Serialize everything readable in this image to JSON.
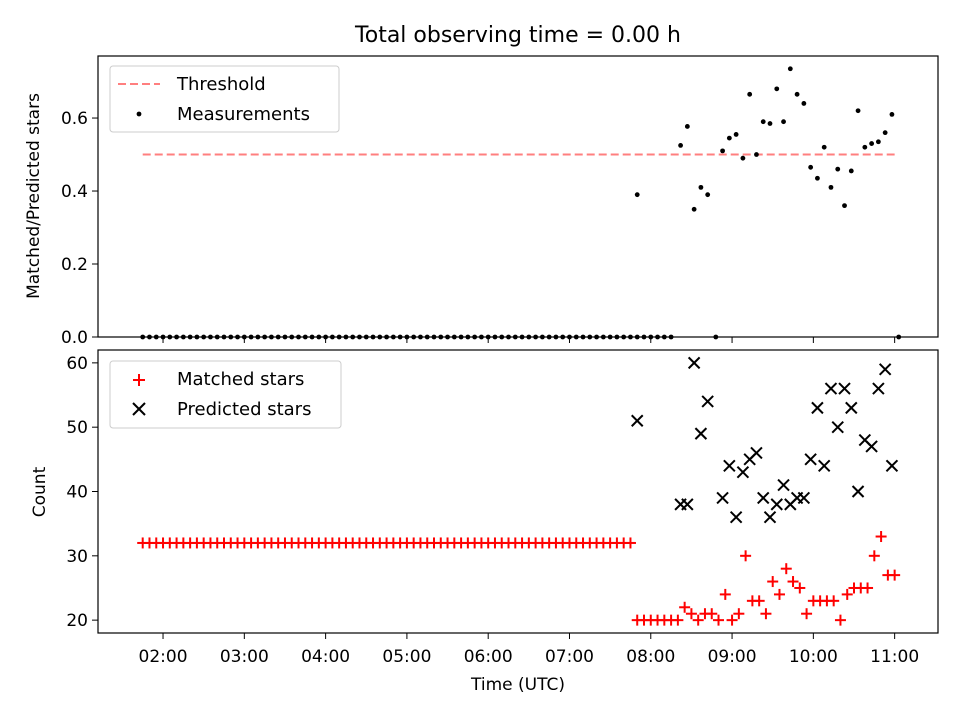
{
  "figure": {
    "title": "Total observing time = 0.00 h",
    "xlabel": "Time (UTC)"
  },
  "colors": {
    "threshold": "#ff7f7f",
    "measurement": "#000000",
    "matched": "#ff0000",
    "predicted": "#000000"
  },
  "chart_data": [
    {
      "type": "scatter",
      "ylabel": "Matched/Predicted stars",
      "ylim": [
        0,
        0.77
      ],
      "yticks": [
        "0.0",
        "0.2",
        "0.4",
        "0.6"
      ],
      "xlim": [
        "01:12",
        "11:32"
      ],
      "legend": {
        "position": "upper-left",
        "entries": [
          "Threshold",
          "Measurements"
        ]
      },
      "threshold": {
        "name": "Threshold",
        "value": 0.5,
        "x": [
          "01:45",
          "11:00"
        ]
      },
      "measurements": {
        "name": "Measurements",
        "zero_times": [
          "01:45",
          "01:50",
          "01:55",
          "02:00",
          "02:05",
          "02:10",
          "02:15",
          "02:20",
          "02:25",
          "02:30",
          "02:35",
          "02:40",
          "02:45",
          "02:50",
          "02:55",
          "03:00",
          "03:05",
          "03:10",
          "03:15",
          "03:20",
          "03:25",
          "03:30",
          "03:35",
          "03:40",
          "03:45",
          "03:50",
          "03:55",
          "04:00",
          "04:05",
          "04:10",
          "04:15",
          "04:20",
          "04:25",
          "04:30",
          "04:35",
          "04:40",
          "04:45",
          "04:50",
          "04:55",
          "05:00",
          "05:05",
          "05:10",
          "05:15",
          "05:20",
          "05:25",
          "05:30",
          "05:35",
          "05:40",
          "05:45",
          "05:50",
          "05:55",
          "06:00",
          "06:05",
          "06:10",
          "06:15",
          "06:20",
          "06:25",
          "06:30",
          "06:35",
          "06:40",
          "06:45",
          "06:50",
          "06:55",
          "07:00",
          "07:05",
          "07:10",
          "07:15",
          "07:20",
          "07:25",
          "07:30",
          "07:35",
          "07:40",
          "07:45",
          "07:50",
          "07:55",
          "08:00",
          "08:05",
          "08:10",
          "08:15",
          "08:48",
          "11:03"
        ],
        "points": [
          [
            "07:50",
            0.39
          ],
          [
            "08:22",
            0.525
          ],
          [
            "08:27",
            0.577
          ],
          [
            "08:32",
            0.35
          ],
          [
            "08:37",
            0.41
          ],
          [
            "08:42",
            0.39
          ],
          [
            "08:53",
            0.51
          ],
          [
            "08:58",
            0.545
          ],
          [
            "09:03",
            0.555
          ],
          [
            "09:08",
            0.49
          ],
          [
            "09:13",
            0.665
          ],
          [
            "09:18",
            0.5
          ],
          [
            "09:23",
            0.59
          ],
          [
            "09:28",
            0.585
          ],
          [
            "09:33",
            0.68
          ],
          [
            "09:38",
            0.59
          ],
          [
            "09:43",
            0.735
          ],
          [
            "09:48",
            0.665
          ],
          [
            "09:53",
            0.64
          ],
          [
            "09:58",
            0.465
          ],
          [
            "10:03",
            0.435
          ],
          [
            "10:08",
            0.52
          ],
          [
            "10:13",
            0.41
          ],
          [
            "10:18",
            0.46
          ],
          [
            "10:23",
            0.36
          ],
          [
            "10:28",
            0.455
          ],
          [
            "10:33",
            0.62
          ],
          [
            "10:38",
            0.52
          ],
          [
            "10:43",
            0.53
          ],
          [
            "10:48",
            0.535
          ],
          [
            "10:53",
            0.56
          ],
          [
            "10:58",
            0.61
          ]
        ]
      }
    },
    {
      "type": "scatter",
      "ylabel": "Count",
      "ylim": [
        18,
        62
      ],
      "yticks": [
        "20",
        "30",
        "40",
        "50",
        "60"
      ],
      "xlim": [
        "01:12",
        "11:32"
      ],
      "xticks": [
        "02:00",
        "03:00",
        "04:00",
        "05:00",
        "06:00",
        "07:00",
        "08:00",
        "09:00",
        "10:00",
        "11:00"
      ],
      "legend": {
        "position": "upper-left",
        "entries": [
          "Matched stars",
          "Predicted stars"
        ]
      },
      "matched": {
        "name": "Matched stars",
        "constant_value": 32,
        "constant_times": [
          "01:45",
          "01:50",
          "01:55",
          "02:00",
          "02:05",
          "02:10",
          "02:15",
          "02:20",
          "02:25",
          "02:30",
          "02:35",
          "02:40",
          "02:45",
          "02:50",
          "02:55",
          "03:00",
          "03:05",
          "03:10",
          "03:15",
          "03:20",
          "03:25",
          "03:30",
          "03:35",
          "03:40",
          "03:45",
          "03:50",
          "03:55",
          "04:00",
          "04:05",
          "04:10",
          "04:15",
          "04:20",
          "04:25",
          "04:30",
          "04:35",
          "04:40",
          "04:45",
          "04:50",
          "04:55",
          "05:00",
          "05:05",
          "05:10",
          "05:15",
          "05:20",
          "05:25",
          "05:30",
          "05:35",
          "05:40",
          "05:45",
          "05:50",
          "05:55",
          "06:00",
          "06:05",
          "06:10",
          "06:15",
          "06:20",
          "06:25",
          "06:30",
          "06:35",
          "06:40",
          "06:45",
          "06:50",
          "06:55",
          "07:00",
          "07:05",
          "07:10",
          "07:15",
          "07:20",
          "07:25",
          "07:30",
          "07:35",
          "07:40",
          "07:45"
        ],
        "points": [
          [
            "07:50",
            20
          ],
          [
            "07:55",
            20
          ],
          [
            "08:00",
            20
          ],
          [
            "08:05",
            20
          ],
          [
            "08:10",
            20
          ],
          [
            "08:15",
            20
          ],
          [
            "08:20",
            20
          ],
          [
            "08:25",
            22
          ],
          [
            "08:30",
            21
          ],
          [
            "08:35",
            20
          ],
          [
            "08:40",
            21
          ],
          [
            "08:45",
            21
          ],
          [
            "08:50",
            20
          ],
          [
            "08:55",
            24
          ],
          [
            "09:00",
            20
          ],
          [
            "09:05",
            21
          ],
          [
            "09:10",
            30
          ],
          [
            "09:15",
            23
          ],
          [
            "09:20",
            23
          ],
          [
            "09:25",
            21
          ],
          [
            "09:30",
            26
          ],
          [
            "09:35",
            24
          ],
          [
            "09:40",
            28
          ],
          [
            "09:45",
            26
          ],
          [
            "09:50",
            25
          ],
          [
            "09:55",
            21
          ],
          [
            "10:00",
            23
          ],
          [
            "10:05",
            23
          ],
          [
            "10:10",
            23
          ],
          [
            "10:15",
            23
          ],
          [
            "10:20",
            20
          ],
          [
            "10:25",
            24
          ],
          [
            "10:30",
            25
          ],
          [
            "10:35",
            25
          ],
          [
            "10:40",
            25
          ],
          [
            "10:45",
            30
          ],
          [
            "10:50",
            33
          ],
          [
            "10:55",
            27
          ],
          [
            "11:00",
            27
          ]
        ]
      },
      "predicted": {
        "name": "Predicted stars",
        "points": [
          [
            "07:50",
            51
          ],
          [
            "08:22",
            38
          ],
          [
            "08:27",
            38
          ],
          [
            "08:32",
            60
          ],
          [
            "08:37",
            49
          ],
          [
            "08:42",
            54
          ],
          [
            "08:53",
            39
          ],
          [
            "08:58",
            44
          ],
          [
            "09:03",
            36
          ],
          [
            "09:08",
            43
          ],
          [
            "09:13",
            45
          ],
          [
            "09:18",
            46
          ],
          [
            "09:23",
            39
          ],
          [
            "09:28",
            36
          ],
          [
            "09:33",
            38
          ],
          [
            "09:38",
            41
          ],
          [
            "09:43",
            38
          ],
          [
            "09:48",
            39
          ],
          [
            "09:53",
            39
          ],
          [
            "09:58",
            45
          ],
          [
            "10:03",
            53
          ],
          [
            "10:08",
            44
          ],
          [
            "10:13",
            56
          ],
          [
            "10:18",
            50
          ],
          [
            "10:23",
            56
          ],
          [
            "10:28",
            53
          ],
          [
            "10:33",
            40
          ],
          [
            "10:38",
            48
          ],
          [
            "10:43",
            47
          ],
          [
            "10:48",
            56
          ],
          [
            "10:53",
            59
          ],
          [
            "10:58",
            44
          ]
        ]
      }
    }
  ]
}
